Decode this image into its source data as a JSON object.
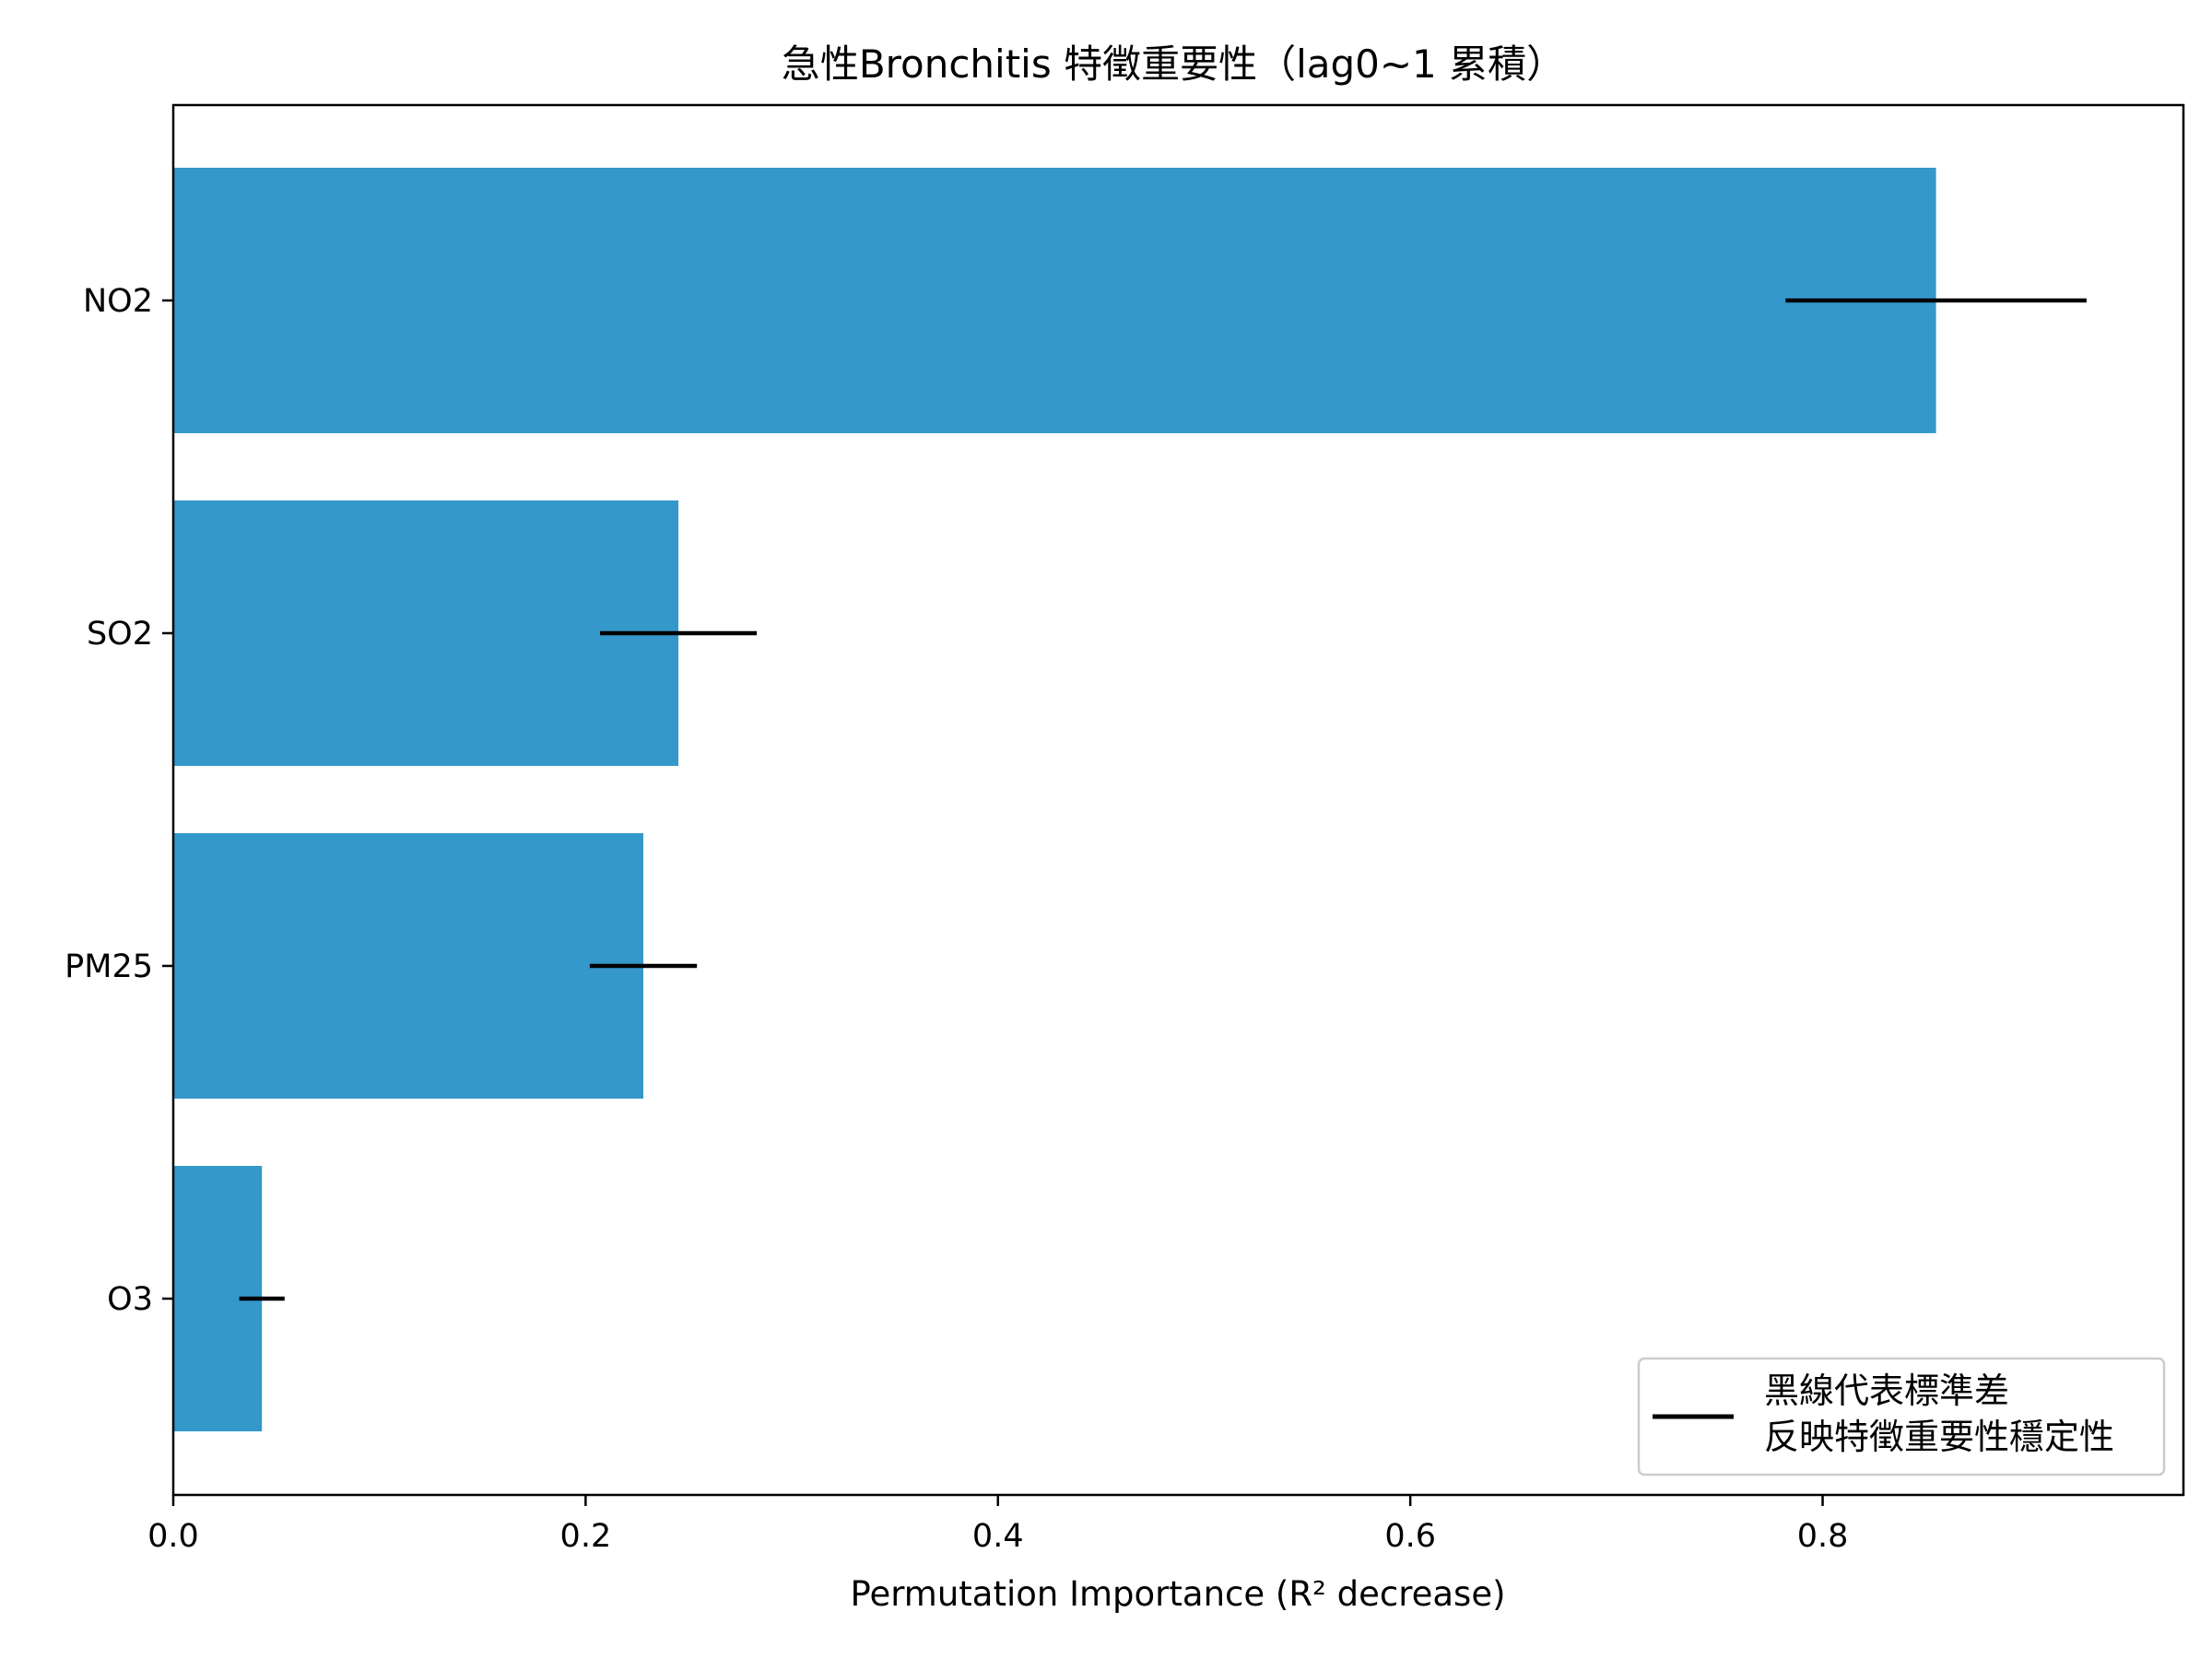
{
  "chart_data": {
    "type": "bar",
    "orientation": "horizontal",
    "title": "急性Bronchitis 特徵重要性（lag0~1 累積）",
    "xlabel": "Permutation Importance (R² decrease)",
    "ylabel": "",
    "categories": [
      "NO2",
      "SO2",
      "PM25",
      "O3"
    ],
    "series": [
      {
        "values": [
          0.855,
          0.245,
          0.228,
          0.043
        ],
        "errors": [
          0.073,
          0.038,
          0.026,
          0.011
        ],
        "color": "#3498cb",
        "error_color": "#000000"
      }
    ],
    "xlim": [
      0.0,
      0.975
    ],
    "xticks": [
      0.0,
      0.2,
      0.4,
      0.6,
      0.8
    ],
    "xtick_labels": [
      "0.0",
      "0.2",
      "0.4",
      "0.6",
      "0.8"
    ],
    "grid": false,
    "legend": {
      "placement": "bottom-right",
      "lines": [
        "黑線代表標準差",
        "反映特徵重要性穩定性"
      ]
    }
  }
}
